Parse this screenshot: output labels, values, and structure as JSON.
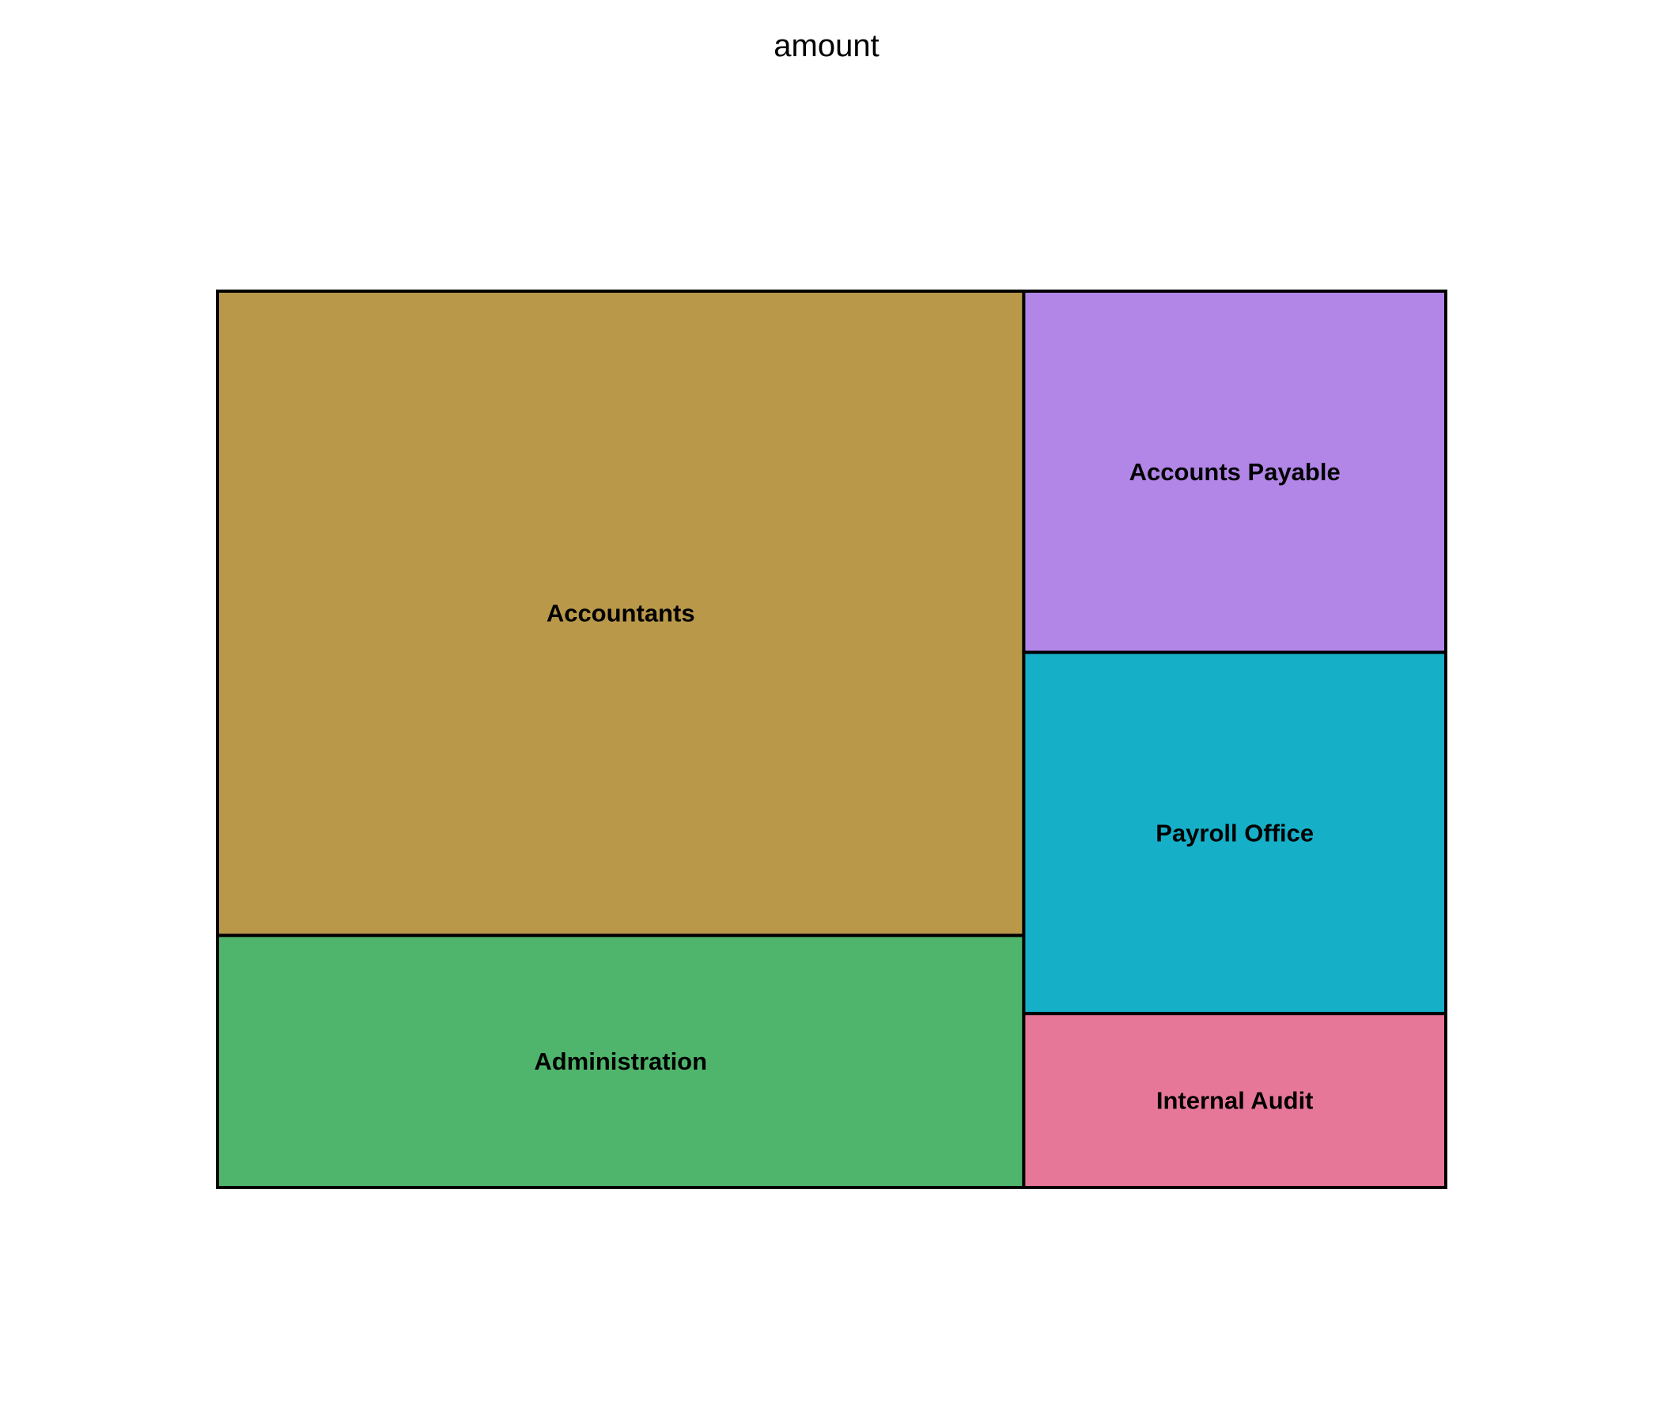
{
  "chart_data": {
    "type": "treemap",
    "title": "amount",
    "tiles": [
      {
        "label": "Accountants",
        "value": 46,
        "color": "#b9984a"
      },
      {
        "label": "Administration",
        "value": 18,
        "color": "#50b56c"
      },
      {
        "label": "Accounts Payable",
        "value": 13.5,
        "color": "#b186e7"
      },
      {
        "label": "Payroll Office",
        "value": 13.5,
        "color": "#16afc8"
      },
      {
        "label": "Internal Audit",
        "value": 6.5,
        "color": "#e77799"
      }
    ]
  }
}
